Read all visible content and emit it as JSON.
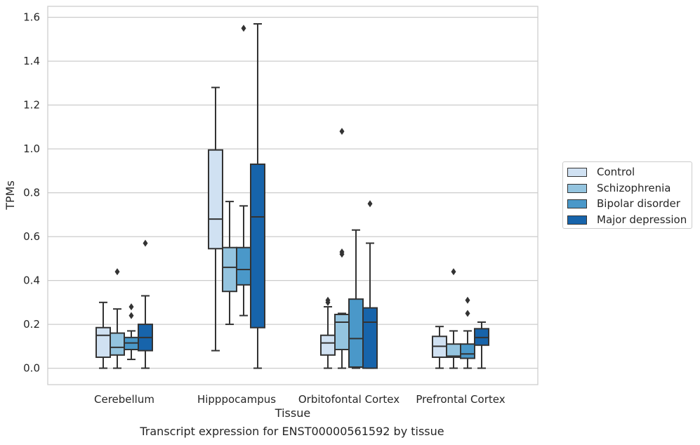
{
  "caption": "Transcript expression for ENST00000561592 by tissue",
  "chart_data": {
    "type": "box",
    "title": "",
    "xlabel": "Tissue",
    "ylabel": "TPMs",
    "ylim": [
      -0.075,
      1.65
    ],
    "y_ticks": [
      "0.0",
      "0.2",
      "0.4",
      "0.6",
      "0.8",
      "1.0",
      "1.2",
      "1.4",
      "1.6"
    ],
    "y_tick_values": [
      0,
      0.2,
      0.4,
      0.6,
      0.8,
      1.0,
      1.2,
      1.4,
      1.6
    ],
    "grid": "horizontal",
    "legend_position": "right",
    "categories": [
      "Cerebellum",
      "Hipppocampus",
      "Orbitofontal Cortex",
      "Prefrontal Cortex"
    ],
    "series": [
      {
        "name": "Control",
        "color": "#d0e1f2",
        "boxes": [
          {
            "whisker_low": 0.0,
            "q1": 0.05,
            "median": 0.15,
            "q3": 0.185,
            "whisker_high": 0.3,
            "outliers": []
          },
          {
            "whisker_low": 0.08,
            "q1": 0.545,
            "median": 0.68,
            "q3": 0.995,
            "whisker_high": 1.28,
            "outliers": []
          },
          {
            "whisker_low": 0.0,
            "q1": 0.06,
            "median": 0.115,
            "q3": 0.15,
            "whisker_high": 0.28,
            "outliers": [
              0.3,
              0.31
            ]
          },
          {
            "whisker_low": 0.0,
            "q1": 0.05,
            "median": 0.1,
            "q3": 0.145,
            "whisker_high": 0.19,
            "outliers": []
          }
        ]
      },
      {
        "name": "Schizophrenia",
        "color": "#94c4df",
        "boxes": [
          {
            "whisker_low": 0.0,
            "q1": 0.06,
            "median": 0.095,
            "q3": 0.16,
            "whisker_high": 0.27,
            "outliers": [
              0.44
            ]
          },
          {
            "whisker_low": 0.2,
            "q1": 0.35,
            "median": 0.46,
            "q3": 0.55,
            "whisker_high": 0.76,
            "outliers": []
          },
          {
            "whisker_low": 0.0,
            "q1": 0.085,
            "median": 0.21,
            "q3": 0.245,
            "whisker_high": 0.25,
            "outliers": [
              0.52,
              0.53,
              1.08
            ]
          },
          {
            "whisker_low": 0.0,
            "q1": 0.05,
            "median": 0.055,
            "q3": 0.11,
            "whisker_high": 0.17,
            "outliers": [
              0.44
            ]
          }
        ]
      },
      {
        "name": "Bipolar disorder",
        "color": "#4a98c9",
        "boxes": [
          {
            "whisker_low": 0.04,
            "q1": 0.085,
            "median": 0.115,
            "q3": 0.14,
            "whisker_high": 0.17,
            "outliers": [
              0.24,
              0.28
            ]
          },
          {
            "whisker_low": 0.24,
            "q1": 0.38,
            "median": 0.45,
            "q3": 0.55,
            "whisker_high": 0.74,
            "outliers": [
              1.55
            ]
          },
          {
            "whisker_low": 0.0,
            "q1": 0.005,
            "median": 0.135,
            "q3": 0.315,
            "whisker_high": 0.63,
            "outliers": []
          },
          {
            "whisker_low": 0.0,
            "q1": 0.045,
            "median": 0.065,
            "q3": 0.11,
            "whisker_high": 0.17,
            "outliers": [
              0.25,
              0.31
            ]
          }
        ]
      },
      {
        "name": "Major depression",
        "color": "#1764ab",
        "boxes": [
          {
            "whisker_low": 0.0,
            "q1": 0.08,
            "median": 0.14,
            "q3": 0.2,
            "whisker_high": 0.33,
            "outliers": [
              0.57
            ]
          },
          {
            "whisker_low": 0.0,
            "q1": 0.185,
            "median": 0.69,
            "q3": 0.93,
            "whisker_high": 1.57,
            "outliers": []
          },
          {
            "whisker_low": 0.0,
            "q1": 0.0,
            "median": 0.21,
            "q3": 0.275,
            "whisker_high": 0.57,
            "outliers": [
              0.75
            ]
          },
          {
            "whisker_low": 0.0,
            "q1": 0.105,
            "median": 0.14,
            "q3": 0.18,
            "whisker_high": 0.21,
            "outliers": []
          }
        ]
      }
    ]
  }
}
